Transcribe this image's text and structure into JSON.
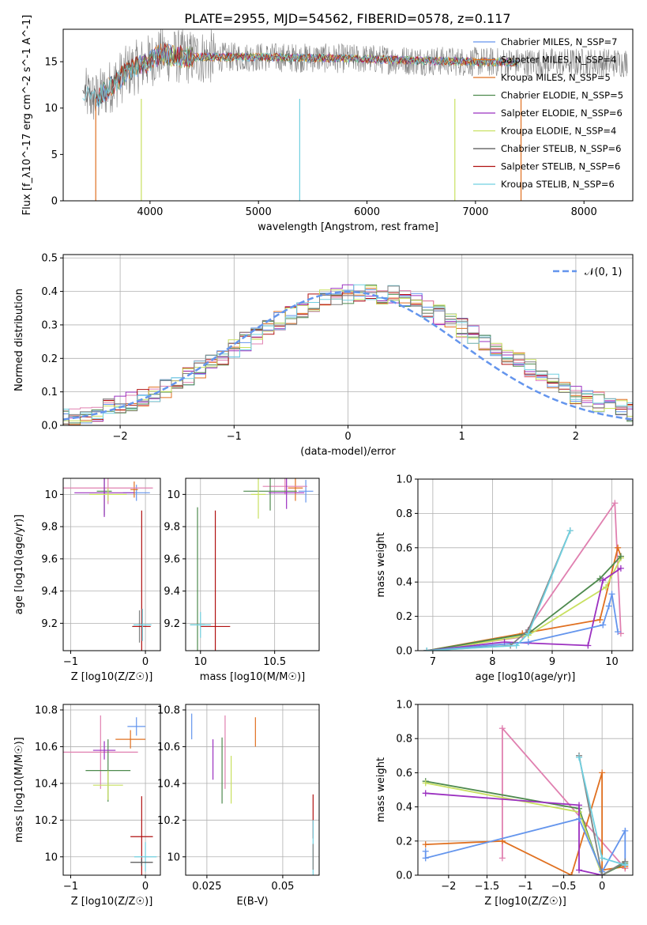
{
  "figure": {
    "title": "PLATE=2955, MJD=54562, FIBERID=0578, z=0.117",
    "colors": {
      "blue": "#6495ed",
      "orange": "#e07020",
      "pink": "#e080b0",
      "green": "#4e8a4e",
      "purple": "#9b30c0",
      "yellow": "#c8e060",
      "gray": "#808080",
      "red": "#b01010",
      "cyan": "#70d0e0"
    }
  },
  "chart_data": [
    {
      "id": "spectrum",
      "type": "line",
      "title": "PLATE=2955, MJD=54562, FIBERID=0578, z=0.117",
      "xlabel": "wavelength [Angstrom, rest frame]",
      "ylabel": "Flux [f_λ10^-17 erg cm^-2 s^-1 A^-1]",
      "xlim": [
        3200,
        8450
      ],
      "ylim": [
        0,
        18.5
      ],
      "xticks": [
        4000,
        5000,
        6000,
        7000,
        8000
      ],
      "yticks": [
        0,
        5,
        10,
        15
      ],
      "grid": false,
      "legend_position": "right",
      "continuum_x": [
        3380,
        3500,
        3650,
        3800,
        3950,
        4100,
        4300,
        4600,
        5000,
        5500,
        6000,
        6500,
        7000,
        7400
      ],
      "continuum_y": [
        11.5,
        11.0,
        12.5,
        14.0,
        14.8,
        15.8,
        15.5,
        15.5,
        15.5,
        15.4,
        15.3,
        15.1,
        15.0,
        14.9
      ],
      "data_noise_extent": [
        3400,
        8400
      ],
      "model_start_x": [
        3500,
        3620,
        3920,
        3500,
        3920,
        3920,
        3380,
        3500,
        3380
      ],
      "drop_lines": [
        {
          "x": 3500,
          "color": "#e07020"
        },
        {
          "x": 3920,
          "color": "#c8e060"
        },
        {
          "x": 5380,
          "color": "#70d0e0"
        },
        {
          "x": 6810,
          "color": "#c8e060"
        },
        {
          "x": 7420,
          "color": "#e07020"
        }
      ],
      "series": [
        {
          "name": "Chabrier MILES, N_SSP=7",
          "color": "#6495ed"
        },
        {
          "name": "Salpeter MILES, N_SSP=4",
          "color": "#e07020"
        },
        {
          "name": "Kroupa MILES, N_SSP=5",
          "color": "#e07020"
        },
        {
          "name": "Chabrier ELODIE, N_SSP=5",
          "color": "#4e8a4e"
        },
        {
          "name": "Salpeter ELODIE, N_SSP=6",
          "color": "#9b30c0"
        },
        {
          "name": "Kroupa ELODIE, N_SSP=4",
          "color": "#c8e060"
        },
        {
          "name": "Chabrier STELIB, N_SSP=6",
          "color": "#505050"
        },
        {
          "name": "Salpeter STELIB, N_SSP=6",
          "color": "#b01010"
        },
        {
          "name": "Kroupa STELIB, N_SSP=6",
          "color": "#70d0e0"
        }
      ]
    },
    {
      "id": "residuals",
      "type": "line",
      "xlabel": "(data-model)/error",
      "ylabel": "Normed distribution",
      "xlim": [
        -2.5,
        2.5
      ],
      "ylim": [
        0,
        0.51
      ],
      "xticks": [
        -2,
        -1,
        0,
        1,
        2
      ],
      "yticks": [
        0.0,
        0.1,
        0.2,
        0.3,
        0.4,
        0.5
      ],
      "grid": true,
      "legend_position": "top-right",
      "legend_label": "𝒩(0, 1)",
      "bin_width": 0.1,
      "base_hist": [
        0.02,
        0.03,
        0.03,
        0.04,
        0.05,
        0.06,
        0.07,
        0.08,
        0.09,
        0.11,
        0.13,
        0.15,
        0.17,
        0.19,
        0.21,
        0.23,
        0.25,
        0.27,
        0.29,
        0.31,
        0.33,
        0.35,
        0.37,
        0.38,
        0.39,
        0.39,
        0.4,
        0.4,
        0.39,
        0.39,
        0.38,
        0.37,
        0.35,
        0.33,
        0.31,
        0.29,
        0.27,
        0.25,
        0.23,
        0.21,
        0.19,
        0.17,
        0.15,
        0.13,
        0.11,
        0.09,
        0.08,
        0.07,
        0.06,
        0.05,
        0.04
      ],
      "gaussian_color": "#6495ed"
    },
    {
      "id": "age-vs-Z",
      "type": "scatter",
      "xlabel": "Z [log10(Z/Z☉)]",
      "ylabel": "age [log10(age/yr)]",
      "xlim": [
        -1.1,
        0.2
      ],
      "ylim": [
        9.03,
        10.1
      ],
      "xticks": [
        -1,
        0
      ],
      "yticks": [
        9.2,
        9.4,
        9.6,
        9.8,
        10.0
      ],
      "grid": true,
      "points": [
        {
          "x": -0.12,
          "y": 10.01,
          "xerr": 0.18,
          "yerr": 0.05,
          "color": "#6495ed"
        },
        {
          "x": -0.15,
          "y": 10.03,
          "xerr": 0.05,
          "yerr": 0.05,
          "color": "#e07020"
        },
        {
          "x": -0.5,
          "y": 10.04,
          "xerr": 0.6,
          "yerr": 0.1,
          "color": "#e080b0"
        },
        {
          "x": -0.55,
          "y": 10.02,
          "xerr": 0.1,
          "yerr": 0.15,
          "color": "#4e8a4e"
        },
        {
          "x": -0.55,
          "y": 10.01,
          "xerr": 0.4,
          "yerr": 0.15,
          "color": "#9b30c0"
        },
        {
          "x": -0.5,
          "y": 10.0,
          "xerr": 0.25,
          "yerr": 0.04,
          "color": "#c8e060"
        },
        {
          "x": -0.08,
          "y": 9.18,
          "xerr": 0.1,
          "yerr": 0.1,
          "color": "#808080"
        },
        {
          "x": -0.05,
          "y": 9.18,
          "xerr": 0.12,
          "yerr": 0.72,
          "color": "#b01010"
        },
        {
          "x": -0.04,
          "y": 9.19,
          "xerr": 0.12,
          "yerr": 0.1,
          "color": "#70d0e0"
        }
      ]
    },
    {
      "id": "age-vs-mass",
      "type": "scatter",
      "xlabel": "mass [log10(M/M☉)]",
      "ylabel": "",
      "xlim": [
        9.9,
        10.8
      ],
      "ylim": [
        9.03,
        10.1
      ],
      "xticks": [
        10.0,
        10.5
      ],
      "yticks": [
        9.2,
        9.4,
        9.6,
        9.8,
        10.0
      ],
      "grid": true,
      "points": [
        {
          "x": 10.71,
          "y": 10.02,
          "xerr": 0.05,
          "yerr": 0.07,
          "color": "#6495ed"
        },
        {
          "x": 10.64,
          "y": 10.04,
          "xerr": 0.05,
          "yerr": 0.08,
          "color": "#e07020"
        },
        {
          "x": 10.57,
          "y": 10.05,
          "xerr": 0.15,
          "yerr": 0.05,
          "color": "#e080b0"
        },
        {
          "x": 10.47,
          "y": 10.02,
          "xerr": 0.18,
          "yerr": 0.12,
          "color": "#4e8a4e"
        },
        {
          "x": 10.58,
          "y": 10.01,
          "xerr": 0.12,
          "yerr": 0.1,
          "color": "#9b30c0"
        },
        {
          "x": 10.39,
          "y": 10.0,
          "xerr": 0.05,
          "yerr": 0.15,
          "color": "#c8e060"
        },
        {
          "x": 9.98,
          "y": 9.19,
          "xerr": 0.05,
          "yerr": 0.73,
          "color": "#4e8a4e"
        },
        {
          "x": 10.1,
          "y": 9.18,
          "xerr": 0.1,
          "yerr": 0.72,
          "color": "#b01010"
        },
        {
          "x": 10.0,
          "y": 9.19,
          "xerr": 0.07,
          "yerr": 0.08,
          "color": "#70d0e0"
        }
      ]
    },
    {
      "id": "weight-vs-age",
      "type": "line",
      "xlabel": "age [log10(age/yr)]",
      "ylabel": "mass weight",
      "xlim": [
        6.75,
        10.35
      ],
      "ylim": [
        0,
        1.0
      ],
      "xticks": [
        7,
        8,
        9,
        10
      ],
      "yticks": [
        0.0,
        0.2,
        0.4,
        0.6,
        0.8,
        1.0
      ],
      "grid": true,
      "series": [
        {
          "color": "#e080b0",
          "x": [
            6.9,
            8.5,
            10.05,
            10.15
          ],
          "y": [
            0.0,
            0.08,
            0.86,
            0.1
          ]
        },
        {
          "color": "#e07020",
          "x": [
            6.9,
            8.5,
            9.8,
            10.1,
            10.15
          ],
          "y": [
            0.0,
            0.1,
            0.18,
            0.6,
            0.55
          ]
        },
        {
          "color": "#c8e060",
          "x": [
            6.9,
            7.7,
            8.6,
            9.9,
            10.15
          ],
          "y": [
            0.0,
            0.04,
            0.09,
            0.37,
            0.54
          ]
        },
        {
          "color": "#4e8a4e",
          "x": [
            6.9,
            8.6,
            9.8,
            10.15
          ],
          "y": [
            0.0,
            0.1,
            0.42,
            0.55
          ]
        },
        {
          "color": "#9b30c0",
          "x": [
            6.9,
            8.2,
            9.6,
            9.85,
            10.15
          ],
          "y": [
            0.0,
            0.05,
            0.03,
            0.41,
            0.48
          ]
        },
        {
          "color": "#6495ed",
          "x": [
            6.9,
            8.6,
            9.85,
            9.95,
            10.0,
            10.1
          ],
          "y": [
            0.0,
            0.05,
            0.15,
            0.26,
            0.33,
            0.11
          ]
        },
        {
          "color": "#808080",
          "x": [
            6.9,
            8.3,
            8.6,
            9.3
          ],
          "y": [
            0.0,
            0.03,
            0.12,
            0.7
          ]
        },
        {
          "color": "#70d0e0",
          "x": [
            6.9,
            8.4,
            8.6,
            9.3
          ],
          "y": [
            0.0,
            0.03,
            0.1,
            0.7
          ]
        }
      ]
    },
    {
      "id": "mass-vs-Z",
      "type": "scatter",
      "xlabel": "Z [log10(Z/Z☉)]",
      "ylabel": "mass [log10(M/M☉)]",
      "xlim": [
        -1.1,
        0.2
      ],
      "ylim": [
        9.9,
        10.83
      ],
      "xticks": [
        -1,
        0
      ],
      "yticks": [
        10.0,
        10.2,
        10.4,
        10.6,
        10.8
      ],
      "grid": true,
      "points": [
        {
          "x": -0.12,
          "y": 10.71,
          "xerr": 0.12,
          "yerr": 0.05,
          "color": "#6495ed"
        },
        {
          "x": -0.2,
          "y": 10.64,
          "xerr": 0.2,
          "yerr": 0.05,
          "color": "#e07020"
        },
        {
          "x": -0.6,
          "y": 10.57,
          "xerr": 0.5,
          "yerr": 0.2,
          "color": "#e080b0"
        },
        {
          "x": -0.5,
          "y": 10.47,
          "xerr": 0.3,
          "yerr": 0.17,
          "color": "#4e8a4e"
        },
        {
          "x": -0.55,
          "y": 10.58,
          "xerr": 0.15,
          "yerr": 0.05,
          "color": "#9b30c0"
        },
        {
          "x": -0.5,
          "y": 10.39,
          "xerr": 0.2,
          "yerr": 0.08,
          "color": "#c8e060"
        },
        {
          "x": -0.05,
          "y": 10.11,
          "xerr": 0.15,
          "yerr": 0.22,
          "color": "#b01010"
        },
        {
          "x": 0.0,
          "y": 10.0,
          "xerr": 0.15,
          "yerr": 0.08,
          "color": "#70d0e0"
        },
        {
          "x": -0.05,
          "y": 9.97,
          "xerr": 0.15,
          "yerr": 0.02,
          "color": "#505050"
        }
      ]
    },
    {
      "id": "mass-vs-EBV",
      "type": "scatter",
      "xlabel": "E(B-V)",
      "ylabel": "",
      "xlim": [
        0.018,
        0.062
      ],
      "ylim": [
        9.9,
        10.83
      ],
      "xticks": [
        0.025,
        0.05
      ],
      "yticks": [
        10.0,
        10.2,
        10.4,
        10.6,
        10.8
      ],
      "grid": true,
      "points": [
        {
          "x": 0.02,
          "y": 10.71,
          "xerr": 0,
          "yerr": 0.07,
          "color": "#6495ed"
        },
        {
          "x": 0.041,
          "y": 10.68,
          "xerr": 0,
          "yerr": 0.08,
          "color": "#e07020"
        },
        {
          "x": 0.031,
          "y": 10.57,
          "xerr": 0,
          "yerr": 0.2,
          "color": "#e080b0"
        },
        {
          "x": 0.03,
          "y": 10.47,
          "xerr": 0,
          "yerr": 0.18,
          "color": "#4e8a4e"
        },
        {
          "x": 0.027,
          "y": 10.53,
          "xerr": 0,
          "yerr": 0.11,
          "color": "#9b30c0"
        },
        {
          "x": 0.033,
          "y": 10.42,
          "xerr": 0,
          "yerr": 0.13,
          "color": "#c8e060"
        },
        {
          "x": 0.06,
          "y": 10.22,
          "xerr": 0,
          "yerr": 0.12,
          "color": "#b01010"
        },
        {
          "x": 0.06,
          "y": 10.05,
          "xerr": 0,
          "yerr": 0.15,
          "color": "#70d0e0"
        },
        {
          "x": 0.06,
          "y": 10.0,
          "xerr": 0,
          "yerr": 0.07,
          "color": "#808080"
        }
      ]
    },
    {
      "id": "weight-vs-Z",
      "type": "line",
      "xlabel": "Z [log10(Z/Z☉)]",
      "ylabel": "mass weight",
      "xlim": [
        -2.4,
        0.4
      ],
      "ylim": [
        0,
        1.0
      ],
      "xticks": [
        -2.0,
        -1.5,
        -1.0,
        -0.5,
        0.0
      ],
      "yticks": [
        0.0,
        0.2,
        0.4,
        0.6,
        0.8,
        1.0
      ],
      "grid": true,
      "series": [
        {
          "color": "#e080b0",
          "x": [
            -1.3,
            -1.3,
            0.3,
            0.3
          ],
          "y": [
            0.1,
            0.86,
            0.04,
            0.04
          ]
        },
        {
          "color": "#e07020",
          "x": [
            -2.3,
            -1.3,
            -0.4,
            0.0,
            0.0,
            0.3
          ],
          "y": [
            0.18,
            0.2,
            0.0,
            0.6,
            0.03,
            0.05
          ]
        },
        {
          "color": "#4e8a4e",
          "x": [
            -2.3,
            -0.3,
            0.0,
            0.3
          ],
          "y": [
            0.55,
            0.39,
            0.0,
            0.07
          ]
        },
        {
          "color": "#c8e060",
          "x": [
            -2.3,
            -0.3,
            0.0,
            0.3
          ],
          "y": [
            0.54,
            0.37,
            0.0,
            0.08
          ]
        },
        {
          "color": "#9b30c0",
          "x": [
            -2.3,
            -0.3,
            -0.3,
            0.0
          ],
          "y": [
            0.48,
            0.41,
            0.03,
            0.0
          ]
        },
        {
          "color": "#6495ed",
          "x": [
            -2.3,
            -2.3,
            -0.3,
            0.0,
            0.3,
            0.3
          ],
          "y": [
            0.14,
            0.1,
            0.33,
            0.02,
            0.26,
            0.06
          ]
        },
        {
          "color": "#808080",
          "x": [
            -0.3,
            0.0,
            0.3
          ],
          "y": [
            0.7,
            0.0,
            0.08
          ]
        },
        {
          "color": "#70d0e0",
          "x": [
            -0.3,
            0.0,
            0.3
          ],
          "y": [
            0.69,
            0.1,
            0.06
          ]
        }
      ]
    }
  ]
}
